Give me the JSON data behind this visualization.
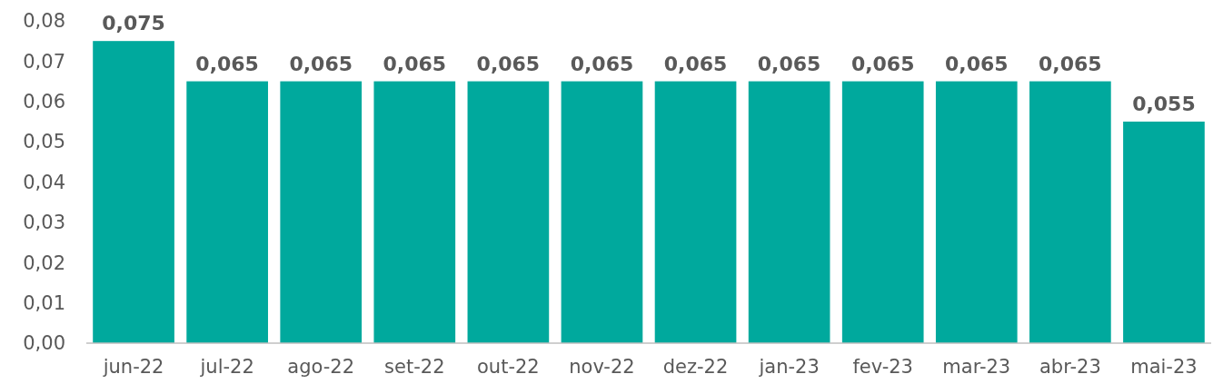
{
  "chart_data": {
    "type": "bar",
    "categories": [
      "jun-22",
      "jul-22",
      "ago-22",
      "set-22",
      "out-22",
      "nov-22",
      "dez-22",
      "jan-23",
      "fev-23",
      "mar-23",
      "abr-23",
      "mai-23"
    ],
    "values": [
      0.075,
      0.065,
      0.065,
      0.065,
      0.065,
      0.065,
      0.065,
      0.065,
      0.065,
      0.065,
      0.065,
      0.055
    ],
    "value_labels": [
      "0,075",
      "0,065",
      "0,065",
      "0,065",
      "0,065",
      "0,065",
      "0,065",
      "0,065",
      "0,065",
      "0,065",
      "0,065",
      "0,055"
    ],
    "color": "#00a99d",
    "ylim": [
      0,
      0.08
    ],
    "yticks": [
      {
        "value": 0,
        "label": "0,00"
      },
      {
        "value": 0.01,
        "label": "0,01"
      },
      {
        "value": 0.02,
        "label": "0,02"
      },
      {
        "value": 0.03,
        "label": "0,03"
      },
      {
        "value": 0.04,
        "label": "0,04"
      },
      {
        "value": 0.05,
        "label": "0,05"
      },
      {
        "value": 0.06,
        "label": "0,06"
      },
      {
        "value": 0.07,
        "label": "0,07"
      },
      {
        "value": 0.08,
        "label": "0,08"
      }
    ],
    "grid": false
  }
}
